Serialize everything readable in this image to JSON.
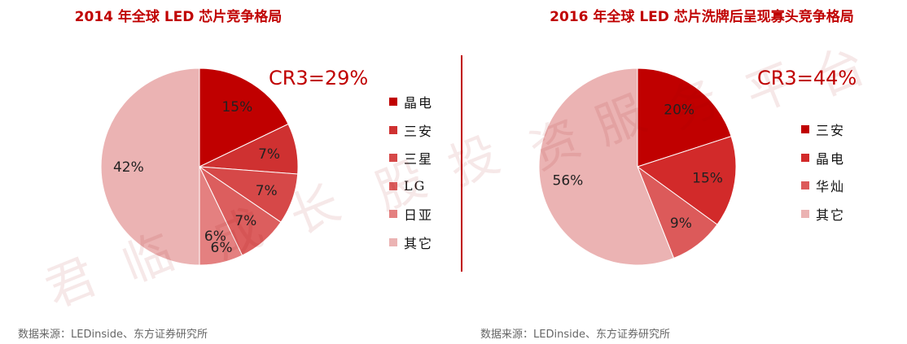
{
  "watermark": [
    "君",
    "临",
    "成",
    "长",
    "股",
    "投",
    "资",
    "服",
    "务",
    "平",
    "台"
  ],
  "chart_data": [
    {
      "type": "pie",
      "title": "2014 年全球 LED 芯片竞争格局",
      "annotation": "CR3=29%",
      "start": "12 o'clock, clockwise",
      "slices": [
        {
          "label": "晶电",
          "value": 15,
          "data_label": "15%",
          "color": "#c00000"
        },
        {
          "label": "三安",
          "value": 7,
          "data_label": "7%",
          "color": "#cf3131"
        },
        {
          "label": "三星",
          "value": 7,
          "data_label": "7%",
          "color": "#d64848"
        },
        {
          "label": "LG",
          "value": 7,
          "data_label": "7%",
          "color": "#dc5e5e"
        },
        {
          "label": "日亚",
          "value": 6,
          "data_label": "6%",
          "color": "#e48080"
        },
        {
          "label": "其它",
          "value": 42,
          "data_label": "42%",
          "color": "#ebb3b3"
        }
      ],
      "extra_labels": [
        "6%"
      ],
      "legend_position": "right",
      "source": "数据来源：LEDinside、东方证券研究所"
    },
    {
      "type": "pie",
      "title": "2016 年全球 LED 芯片洗牌后呈现寡头竞争格局",
      "annotation": "CR3=44%",
      "start": "12 o'clock, clockwise",
      "slices": [
        {
          "label": "三安",
          "value": 20,
          "data_label": "20%",
          "color": "#c00000"
        },
        {
          "label": "晶电",
          "value": 15,
          "data_label": "15%",
          "color": "#d22a2a"
        },
        {
          "label": "华灿",
          "value": 9,
          "data_label": "9%",
          "color": "#dc5a5a"
        },
        {
          "label": "其它",
          "value": 56,
          "data_label": "56%",
          "color": "#ebb3b3"
        }
      ],
      "legend_position": "right",
      "source": "数据来源：LEDinside、东方证券研究所"
    }
  ]
}
